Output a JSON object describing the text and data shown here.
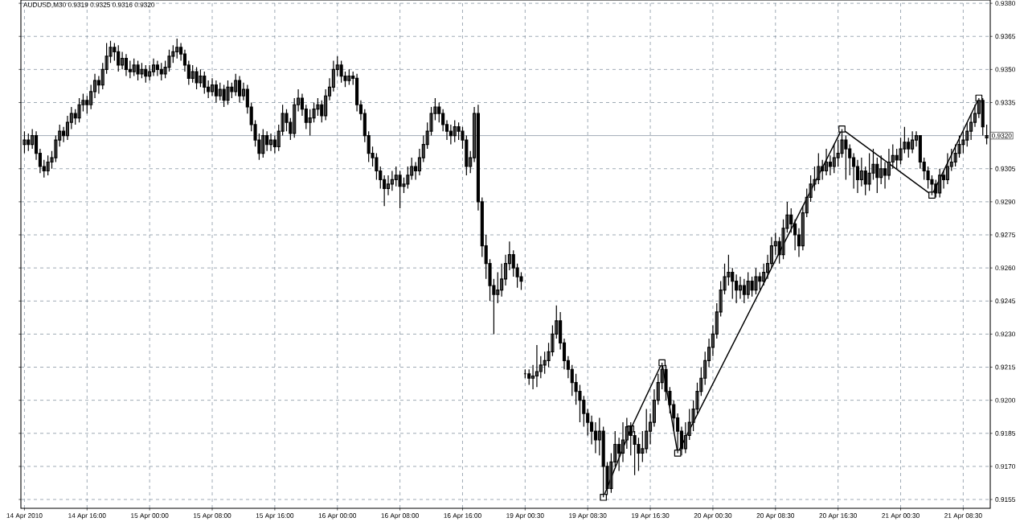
{
  "chart_data": {
    "type": "candlestick",
    "title": "AUDUSD,M30 0.9319 0.9325 0.9316 0.9320",
    "categories": [
      "14 Apr 2010",
      null,
      null,
      null,
      null,
      null,
      null,
      null,
      null,
      null,
      null,
      null,
      null,
      null,
      null,
      null,
      "14 Apr 16:00",
      null,
      null,
      null,
      null,
      null,
      null,
      null,
      null,
      null,
      null,
      null,
      null,
      null,
      null,
      null,
      "15 Apr 00:00",
      null,
      null,
      null,
      null,
      null,
      null,
      null,
      null,
      null,
      null,
      null,
      null,
      null,
      null,
      null,
      "15 Apr 08:00",
      null,
      null,
      null,
      null,
      null,
      null,
      null,
      null,
      null,
      null,
      null,
      null,
      null,
      null,
      null,
      "15 Apr 16:00",
      null,
      null,
      null,
      null,
      null,
      null,
      null,
      null,
      null,
      null,
      null,
      null,
      null,
      null,
      null,
      "16 Apr 00:00",
      null,
      null,
      null,
      null,
      null,
      null,
      null,
      null,
      null,
      null,
      null,
      null,
      null,
      null,
      null,
      "16 Apr 08:00",
      null,
      null,
      null,
      null,
      null,
      null,
      null,
      null,
      null,
      null,
      null,
      null,
      null,
      null,
      null,
      "16 Apr 16:00",
      null,
      null,
      null,
      null,
      null,
      null,
      null,
      null,
      null,
      null,
      null,
      null,
      null,
      null,
      null,
      "19 Apr 00:30",
      null,
      null,
      null,
      null,
      null,
      null,
      null,
      null,
      null,
      null,
      null,
      null,
      null,
      null,
      null,
      "19 Apr 08:30",
      null,
      null,
      null,
      null,
      null,
      null,
      null,
      null,
      null,
      null,
      null,
      null,
      null,
      null,
      null,
      "19 Apr 16:30",
      null,
      null,
      null,
      null,
      null,
      null,
      null,
      null,
      null,
      null,
      null,
      null,
      null,
      null,
      null,
      "20 Apr 00:30",
      null,
      null,
      null,
      null,
      null,
      null,
      null,
      null,
      null,
      null,
      null,
      null,
      null,
      null,
      null,
      "20 Apr 08:30",
      null,
      null,
      null,
      null,
      null,
      null,
      null,
      null,
      null,
      null,
      null,
      null,
      null,
      null,
      null,
      "20 Apr 16:30",
      null,
      null,
      null,
      null,
      null,
      null,
      null,
      null,
      null,
      null,
      null,
      null,
      null,
      null,
      null,
      "21 Apr 00:30",
      null,
      null,
      null,
      null,
      null,
      null,
      null,
      null,
      null,
      null,
      null,
      null,
      null,
      null,
      null,
      "21 Apr 08:30",
      null,
      null,
      null,
      null,
      null,
      null
    ],
    "ohlc": [
      [
        0.9316,
        0.9322,
        0.9312,
        0.9318
      ],
      [
        0.9318,
        0.9321,
        0.9313,
        0.9316
      ],
      [
        0.9316,
        0.9323,
        0.9314,
        0.932
      ],
      [
        0.932,
        0.9322,
        0.9309,
        0.9312
      ],
      [
        0.9312,
        0.9314,
        0.9303,
        0.9306
      ],
      [
        0.9306,
        0.9309,
        0.9301,
        0.9304
      ],
      [
        0.9304,
        0.9311,
        0.9302,
        0.9308
      ],
      [
        0.9308,
        0.9313,
        0.9305,
        0.931
      ],
      [
        0.931,
        0.932,
        0.9308,
        0.9318
      ],
      [
        0.9318,
        0.9325,
        0.9315,
        0.9322
      ],
      [
        0.9322,
        0.9324,
        0.9317,
        0.932
      ],
      [
        0.932,
        0.9329,
        0.9318,
        0.9326
      ],
      [
        0.9326,
        0.9333,
        0.9323,
        0.933
      ],
      [
        0.933,
        0.9332,
        0.9325,
        0.9328
      ],
      [
        0.9328,
        0.9337,
        0.9326,
        0.9334
      ],
      [
        0.9334,
        0.9339,
        0.9331,
        0.9336
      ],
      [
        0.9336,
        0.9338,
        0.933,
        0.9334
      ],
      [
        0.9334,
        0.9343,
        0.9332,
        0.934
      ],
      [
        0.934,
        0.9348,
        0.9337,
        0.9345
      ],
      [
        0.9345,
        0.9347,
        0.9339,
        0.9343
      ],
      [
        0.9343,
        0.9353,
        0.9341,
        0.935
      ],
      [
        0.935,
        0.9362,
        0.9348,
        0.9356
      ],
      [
        0.9356,
        0.9363,
        0.9353,
        0.936
      ],
      [
        0.936,
        0.9362,
        0.9354,
        0.9358
      ],
      [
        0.9358,
        0.9361,
        0.9349,
        0.9352
      ],
      [
        0.9352,
        0.9358,
        0.935,
        0.9355
      ],
      [
        0.9355,
        0.9357,
        0.9347,
        0.935
      ],
      [
        0.935,
        0.9354,
        0.9346,
        0.9349
      ],
      [
        0.9349,
        0.9355,
        0.9347,
        0.9352
      ],
      [
        0.9352,
        0.9354,
        0.9345,
        0.9348
      ],
      [
        0.9348,
        0.9353,
        0.9346,
        0.935
      ],
      [
        0.935,
        0.9352,
        0.9344,
        0.9347
      ],
      [
        0.9347,
        0.9352,
        0.9345,
        0.9349
      ],
      [
        0.9349,
        0.9355,
        0.9347,
        0.9352
      ],
      [
        0.9352,
        0.9354,
        0.9347,
        0.935
      ],
      [
        0.935,
        0.9353,
        0.9345,
        0.9348
      ],
      [
        0.9348,
        0.9354,
        0.9346,
        0.9351
      ],
      [
        0.9351,
        0.9359,
        0.9349,
        0.9356
      ],
      [
        0.9356,
        0.9361,
        0.9353,
        0.9358
      ],
      [
        0.9358,
        0.9364,
        0.9355,
        0.936
      ],
      [
        0.936,
        0.9362,
        0.9354,
        0.9357
      ],
      [
        0.9357,
        0.9359,
        0.9349,
        0.9352
      ],
      [
        0.9352,
        0.9354,
        0.9343,
        0.9346
      ],
      [
        0.9346,
        0.9352,
        0.9344,
        0.9349
      ],
      [
        0.9349,
        0.9351,
        0.9341,
        0.9344
      ],
      [
        0.9344,
        0.935,
        0.9342,
        0.9347
      ],
      [
        0.9347,
        0.9349,
        0.9339,
        0.9342
      ],
      [
        0.9342,
        0.9345,
        0.9337,
        0.934
      ],
      [
        0.934,
        0.9346,
        0.9338,
        0.9343
      ],
      [
        0.9343,
        0.9345,
        0.9335,
        0.9338
      ],
      [
        0.9338,
        0.9344,
        0.9336,
        0.9341
      ],
      [
        0.9341,
        0.9343,
        0.9333,
        0.9336
      ],
      [
        0.9336,
        0.9345,
        0.9334,
        0.9342
      ],
      [
        0.9342,
        0.9344,
        0.9337,
        0.934
      ],
      [
        0.934,
        0.9348,
        0.9338,
        0.9345
      ],
      [
        0.9345,
        0.9347,
        0.9335,
        0.9338
      ],
      [
        0.9338,
        0.9344,
        0.9336,
        0.9341
      ],
      [
        0.9341,
        0.9343,
        0.933,
        0.9333
      ],
      [
        0.9333,
        0.9335,
        0.9322,
        0.9325
      ],
      [
        0.9325,
        0.9327,
        0.9315,
        0.9318
      ],
      [
        0.9318,
        0.9321,
        0.9309,
        0.9312
      ],
      [
        0.9312,
        0.9323,
        0.931,
        0.932
      ],
      [
        0.932,
        0.9322,
        0.9313,
        0.9316
      ],
      [
        0.9316,
        0.9321,
        0.9313,
        0.9318
      ],
      [
        0.9318,
        0.932,
        0.9312,
        0.9315
      ],
      [
        0.9315,
        0.9325,
        0.9313,
        0.9322
      ],
      [
        0.9322,
        0.9334,
        0.932,
        0.933
      ],
      [
        0.933,
        0.9332,
        0.9322,
        0.9326
      ],
      [
        0.9326,
        0.9328,
        0.9318,
        0.9321
      ],
      [
        0.9321,
        0.9337,
        0.9319,
        0.9334
      ],
      [
        0.9334,
        0.9341,
        0.9331,
        0.9337
      ],
      [
        0.9337,
        0.9339,
        0.9329,
        0.9332
      ],
      [
        0.9332,
        0.9334,
        0.9323,
        0.9326
      ],
      [
        0.9326,
        0.9332,
        0.932,
        0.9328
      ],
      [
        0.9328,
        0.9335,
        0.9326,
        0.9332
      ],
      [
        0.9332,
        0.9337,
        0.9329,
        0.9334
      ],
      [
        0.9334,
        0.9336,
        0.9326,
        0.9329
      ],
      [
        0.9329,
        0.9341,
        0.9327,
        0.9338
      ],
      [
        0.9338,
        0.9346,
        0.9336,
        0.9342
      ],
      [
        0.9342,
        0.9354,
        0.934,
        0.935
      ],
      [
        0.935,
        0.9356,
        0.9347,
        0.9352
      ],
      [
        0.9352,
        0.9354,
        0.9344,
        0.9347
      ],
      [
        0.9347,
        0.9349,
        0.9342,
        0.9345
      ],
      [
        0.9345,
        0.935,
        0.9343,
        0.9347
      ],
      [
        0.9347,
        0.9349,
        0.9343,
        0.9346
      ],
      [
        0.9346,
        0.9348,
        0.9331,
        0.9334
      ],
      [
        0.9334,
        0.9336,
        0.9327,
        0.933
      ],
      [
        0.933,
        0.9332,
        0.9317,
        0.932
      ],
      [
        0.932,
        0.9322,
        0.9308,
        0.9312
      ],
      [
        0.9312,
        0.9315,
        0.9306,
        0.931
      ],
      [
        0.931,
        0.9312,
        0.93,
        0.9304
      ],
      [
        0.9304,
        0.9306,
        0.9296,
        0.93
      ],
      [
        0.93,
        0.9302,
        0.9288,
        0.9296
      ],
      [
        0.9296,
        0.9302,
        0.9293,
        0.9298
      ],
      [
        0.9298,
        0.9304,
        0.9295,
        0.93
      ],
      [
        0.93,
        0.9306,
        0.9297,
        0.9302
      ],
      [
        0.9302,
        0.9304,
        0.9287,
        0.9297
      ],
      [
        0.9297,
        0.9301,
        0.9294,
        0.9298
      ],
      [
        0.9298,
        0.9306,
        0.9296,
        0.9302
      ],
      [
        0.9302,
        0.931,
        0.93,
        0.9306
      ],
      [
        0.9306,
        0.9308,
        0.93,
        0.9304
      ],
      [
        0.9304,
        0.9314,
        0.9302,
        0.931
      ],
      [
        0.931,
        0.932,
        0.9308,
        0.9316
      ],
      [
        0.9316,
        0.9326,
        0.9314,
        0.9322
      ],
      [
        0.9322,
        0.9333,
        0.932,
        0.933
      ],
      [
        0.933,
        0.9337,
        0.9327,
        0.9333
      ],
      [
        0.9333,
        0.9335,
        0.9326,
        0.933
      ],
      [
        0.933,
        0.9332,
        0.9322,
        0.9325
      ],
      [
        0.9325,
        0.9327,
        0.9318,
        0.9322
      ],
      [
        0.9322,
        0.9325,
        0.9316,
        0.932
      ],
      [
        0.932,
        0.9327,
        0.9317,
        0.9324
      ],
      [
        0.9324,
        0.9326,
        0.9318,
        0.9322
      ],
      [
        0.9322,
        0.9324,
        0.9314,
        0.9318
      ],
      [
        0.9318,
        0.932,
        0.9302,
        0.9306
      ],
      [
        0.9306,
        0.9313,
        0.9303,
        0.931
      ],
      [
        0.931,
        0.9333,
        0.9308,
        0.933
      ],
      [
        0.933,
        0.9334,
        0.9286,
        0.929
      ],
      [
        0.929,
        0.9292,
        0.9265,
        0.927
      ],
      [
        0.927,
        0.9275,
        0.9255,
        0.9262
      ],
      [
        0.9262,
        0.9264,
        0.9245,
        0.9252
      ],
      [
        0.9252,
        0.9255,
        0.923,
        0.9248
      ],
      [
        0.9248,
        0.9258,
        0.9244,
        0.925
      ],
      [
        0.925,
        0.9262,
        0.9247,
        0.9255
      ],
      [
        0.9255,
        0.9266,
        0.9252,
        0.9262
      ],
      [
        0.9262,
        0.9272,
        0.9259,
        0.9266
      ],
      [
        0.9266,
        0.9268,
        0.9256,
        0.926
      ],
      [
        0.926,
        0.9262,
        0.9251,
        0.9256
      ],
      [
        0.9256,
        0.9258,
        0.925,
        0.9254
      ],
      [
        0.9212,
        0.9214,
        0.921,
        0.9212
      ],
      [
        0.9212,
        0.9214,
        0.9207,
        0.921
      ],
      [
        0.921,
        0.9216,
        0.9205,
        0.9211
      ],
      [
        0.9211,
        0.9225,
        0.9206,
        0.9213
      ],
      [
        0.9213,
        0.922,
        0.921,
        0.9216
      ],
      [
        0.9216,
        0.9222,
        0.9212,
        0.9218
      ],
      [
        0.9218,
        0.9226,
        0.9215,
        0.9222
      ],
      [
        0.9222,
        0.9234,
        0.922,
        0.923
      ],
      [
        0.923,
        0.9243,
        0.9228,
        0.9236
      ],
      [
        0.9236,
        0.924,
        0.9223,
        0.9226
      ],
      [
        0.9226,
        0.9228,
        0.9214,
        0.9218
      ],
      [
        0.9218,
        0.922,
        0.921,
        0.9214
      ],
      [
        0.9214,
        0.9216,
        0.9202,
        0.9208
      ],
      [
        0.9208,
        0.9212,
        0.9198,
        0.9204
      ],
      [
        0.9204,
        0.9207,
        0.919,
        0.92
      ],
      [
        0.92,
        0.9202,
        0.9188,
        0.9194
      ],
      [
        0.9194,
        0.9196,
        0.9184,
        0.919
      ],
      [
        0.919,
        0.9193,
        0.918,
        0.9186
      ],
      [
        0.9186,
        0.919,
        0.9176,
        0.9182
      ],
      [
        0.9182,
        0.9192,
        0.9175,
        0.9186
      ],
      [
        0.9186,
        0.9188,
        0.9156,
        0.917
      ],
      [
        0.917,
        0.9172,
        0.9157,
        0.916
      ],
      [
        0.916,
        0.9176,
        0.9158,
        0.9172
      ],
      [
        0.9172,
        0.9186,
        0.917,
        0.918
      ],
      [
        0.918,
        0.9183,
        0.9168,
        0.9176
      ],
      [
        0.9176,
        0.919,
        0.9172,
        0.9182
      ],
      [
        0.9182,
        0.9192,
        0.9178,
        0.9188
      ],
      [
        0.9188,
        0.919,
        0.9175,
        0.9184
      ],
      [
        0.9184,
        0.9186,
        0.9166,
        0.918
      ],
      [
        0.918,
        0.9183,
        0.9168,
        0.9176
      ],
      [
        0.9176,
        0.9186,
        0.9172,
        0.9178
      ],
      [
        0.9178,
        0.9196,
        0.9176,
        0.9186
      ],
      [
        0.9186,
        0.9194,
        0.918,
        0.919
      ],
      [
        0.919,
        0.9205,
        0.9188,
        0.92
      ],
      [
        0.92,
        0.9212,
        0.9198,
        0.9208
      ],
      [
        0.9208,
        0.9217,
        0.9205,
        0.9214
      ],
      [
        0.9214,
        0.9216,
        0.92,
        0.9204
      ],
      [
        0.9204,
        0.9206,
        0.9194,
        0.9198
      ],
      [
        0.9198,
        0.92,
        0.9186,
        0.9192
      ],
      [
        0.9192,
        0.9194,
        0.9176,
        0.9186
      ],
      [
        0.9186,
        0.9188,
        0.9175,
        0.9178
      ],
      [
        0.9178,
        0.919,
        0.9176,
        0.9184
      ],
      [
        0.9184,
        0.9196,
        0.9182,
        0.919
      ],
      [
        0.919,
        0.92,
        0.9186,
        0.9196
      ],
      [
        0.9196,
        0.9208,
        0.9194,
        0.9204
      ],
      [
        0.9204,
        0.9215,
        0.9202,
        0.921
      ],
      [
        0.921,
        0.9222,
        0.9207,
        0.9218
      ],
      [
        0.9218,
        0.9228,
        0.9215,
        0.9224
      ],
      [
        0.9224,
        0.9234,
        0.922,
        0.923
      ],
      [
        0.923,
        0.9244,
        0.9228,
        0.924
      ],
      [
        0.924,
        0.9254,
        0.9238,
        0.925
      ],
      [
        0.925,
        0.9262,
        0.9248,
        0.9256
      ],
      [
        0.9256,
        0.9266,
        0.9252,
        0.9258
      ],
      [
        0.9258,
        0.926,
        0.9246,
        0.9254
      ],
      [
        0.9254,
        0.9257,
        0.9244,
        0.925
      ],
      [
        0.925,
        0.9256,
        0.9246,
        0.9252
      ],
      [
        0.9252,
        0.9255,
        0.9244,
        0.9248
      ],
      [
        0.9248,
        0.9258,
        0.9246,
        0.9254
      ],
      [
        0.9254,
        0.9256,
        0.9247,
        0.925
      ],
      [
        0.925,
        0.926,
        0.9248,
        0.9256
      ],
      [
        0.9256,
        0.9258,
        0.925,
        0.9254
      ],
      [
        0.9254,
        0.9262,
        0.9252,
        0.9258
      ],
      [
        0.9258,
        0.9266,
        0.9255,
        0.9262
      ],
      [
        0.9262,
        0.9274,
        0.926,
        0.927
      ],
      [
        0.927,
        0.9276,
        0.9266,
        0.9272
      ],
      [
        0.9272,
        0.9274,
        0.9262,
        0.9266
      ],
      [
        0.9266,
        0.9282,
        0.9264,
        0.9278
      ],
      [
        0.9278,
        0.929,
        0.9276,
        0.9284
      ],
      [
        0.9284,
        0.9287,
        0.9276,
        0.928
      ],
      [
        0.928,
        0.9282,
        0.9268,
        0.9275
      ],
      [
        0.9275,
        0.9278,
        0.9265,
        0.927
      ],
      [
        0.927,
        0.9288,
        0.9268,
        0.9285
      ],
      [
        0.9285,
        0.9296,
        0.9283,
        0.9292
      ],
      [
        0.9292,
        0.9302,
        0.929,
        0.9298
      ],
      [
        0.9298,
        0.9306,
        0.9295,
        0.93
      ],
      [
        0.93,
        0.9312,
        0.9298,
        0.9306
      ],
      [
        0.9306,
        0.9309,
        0.93,
        0.9304
      ],
      [
        0.9304,
        0.9314,
        0.9302,
        0.9308
      ],
      [
        0.9308,
        0.9311,
        0.9302,
        0.9306
      ],
      [
        0.9306,
        0.9316,
        0.9303,
        0.931
      ],
      [
        0.931,
        0.9318,
        0.9306,
        0.9312
      ],
      [
        0.9312,
        0.9323,
        0.931,
        0.9318
      ],
      [
        0.9318,
        0.932,
        0.93,
        0.9314
      ],
      [
        0.9314,
        0.9316,
        0.9302,
        0.931
      ],
      [
        0.931,
        0.9312,
        0.9296,
        0.9306
      ],
      [
        0.9306,
        0.9309,
        0.9294,
        0.93
      ],
      [
        0.93,
        0.931,
        0.9297,
        0.9304
      ],
      [
        0.9304,
        0.9306,
        0.9293,
        0.9298
      ],
      [
        0.9298,
        0.9312,
        0.9295,
        0.9303
      ],
      [
        0.9303,
        0.9314,
        0.93,
        0.9307
      ],
      [
        0.9307,
        0.931,
        0.9294,
        0.9301
      ],
      [
        0.9301,
        0.9311,
        0.9298,
        0.9305
      ],
      [
        0.9305,
        0.9308,
        0.9296,
        0.9302
      ],
      [
        0.9302,
        0.9314,
        0.93,
        0.9308
      ],
      [
        0.9308,
        0.9316,
        0.9305,
        0.9311
      ],
      [
        0.9311,
        0.9314,
        0.9305,
        0.9309
      ],
      [
        0.9309,
        0.9319,
        0.9307,
        0.9314
      ],
      [
        0.9314,
        0.9324,
        0.9312,
        0.9317
      ],
      [
        0.9317,
        0.9319,
        0.931,
        0.9314
      ],
      [
        0.9314,
        0.9322,
        0.9312,
        0.9318
      ],
      [
        0.9318,
        0.9322,
        0.9315,
        0.932
      ],
      [
        0.932,
        0.932,
        0.9305,
        0.9308
      ],
      [
        0.9308,
        0.931,
        0.93,
        0.9304
      ],
      [
        0.9304,
        0.9306,
        0.9296,
        0.93
      ],
      [
        0.93,
        0.9302,
        0.9293,
        0.9298
      ],
      [
        0.9298,
        0.93,
        0.9292,
        0.9294
      ],
      [
        0.9294,
        0.9305,
        0.9292,
        0.9302
      ],
      [
        0.9302,
        0.9304,
        0.9296,
        0.93
      ],
      [
        0.93,
        0.9312,
        0.9298,
        0.9306
      ],
      [
        0.9306,
        0.9314,
        0.9304,
        0.9308
      ],
      [
        0.9308,
        0.9316,
        0.9306,
        0.9312
      ],
      [
        0.9312,
        0.932,
        0.931,
        0.9316
      ],
      [
        0.9316,
        0.9322,
        0.9312,
        0.9318
      ],
      [
        0.9318,
        0.9326,
        0.9315,
        0.9322
      ],
      [
        0.9322,
        0.933,
        0.9318,
        0.9326
      ],
      [
        0.9326,
        0.9334,
        0.9324,
        0.933
      ],
      [
        0.933,
        0.9337,
        0.9328,
        0.9336
      ],
      [
        0.9336,
        0.9337,
        0.932,
        0.9324
      ],
      [
        0.9319,
        0.9325,
        0.9316,
        0.932
      ]
    ],
    "series": [
      {
        "type": "line",
        "color": "#000000",
        "marker": "square",
        "values": [
          null,
          null,
          null,
          null,
          null,
          null,
          null,
          null,
          null,
          null,
          null,
          null,
          null,
          null,
          null,
          null,
          null,
          null,
          null,
          null,
          null,
          null,
          null,
          null,
          null,
          null,
          null,
          null,
          null,
          null,
          null,
          null,
          null,
          null,
          null,
          null,
          null,
          null,
          null,
          null,
          null,
          null,
          null,
          null,
          null,
          null,
          null,
          null,
          null,
          null,
          null,
          null,
          null,
          null,
          null,
          null,
          null,
          null,
          null,
          null,
          null,
          null,
          null,
          null,
          null,
          null,
          null,
          null,
          null,
          null,
          null,
          null,
          null,
          null,
          null,
          null,
          null,
          null,
          null,
          null,
          null,
          null,
          null,
          null,
          null,
          null,
          null,
          null,
          null,
          null,
          null,
          null,
          null,
          null,
          null,
          null,
          null,
          null,
          null,
          null,
          null,
          null,
          null,
          null,
          null,
          null,
          null,
          null,
          null,
          null,
          null,
          null,
          null,
          null,
          null,
          null,
          null,
          null,
          null,
          null,
          null,
          null,
          null,
          null,
          null,
          null,
          null,
          null,
          null,
          null,
          null,
          null,
          null,
          null,
          null,
          null,
          null,
          null,
          null,
          null,
          null,
          null,
          null,
          null,
          null,
          null,
          null,
          null,
          0.9156,
          null,
          null,
          null,
          null,
          null,
          null,
          0.9187,
          null,
          null,
          null,
          null,
          null,
          null,
          null,
          0.9217,
          null,
          null,
          null,
          0.9176,
          null,
          null,
          null,
          null,
          null,
          null,
          null,
          null,
          null,
          null,
          null,
          null,
          null,
          null,
          null,
          null,
          null,
          null,
          null,
          null,
          null,
          null,
          null,
          null,
          null,
          null,
          null,
          null,
          null,
          null,
          null,
          null,
          null,
          null,
          null,
          null,
          null,
          null,
          null,
          null,
          null,
          0.9323,
          null,
          null,
          null,
          null,
          null,
          null,
          null,
          null,
          null,
          null,
          null,
          null,
          null,
          null,
          null,
          null,
          null,
          null,
          null,
          null,
          null,
          null,
          0.9293,
          null,
          null,
          null,
          null,
          null,
          null,
          null,
          null,
          null,
          null,
          null,
          0.9337,
          null,
          null
        ]
      }
    ],
    "ylim": [
      0.9151,
      0.93815
    ],
    "yticks": [
      {
        "value": 0.9155,
        "label": "0.9155"
      },
      {
        "value": 0.917,
        "label": "0.9170"
      },
      {
        "value": 0.9185,
        "label": "0.9185"
      },
      {
        "value": 0.92,
        "label": "0.9200"
      },
      {
        "value": 0.9215,
        "label": "0.9215"
      },
      {
        "value": 0.923,
        "label": "0.9230"
      },
      {
        "value": 0.9245,
        "label": "0.9245"
      },
      {
        "value": 0.926,
        "label": "0.9260"
      },
      {
        "value": 0.9275,
        "label": "0.9275"
      },
      {
        "value": 0.929,
        "label": "0.9290"
      },
      {
        "value": 0.9305,
        "label": "0.9305"
      },
      {
        "value": 0.9335,
        "label": "0.9335"
      },
      {
        "value": 0.935,
        "label": "0.9350"
      },
      {
        "value": 0.9365,
        "label": "0.9365"
      },
      {
        "value": 0.938,
        "label": "0.9380"
      }
    ],
    "ref_lines": [
      {
        "axis": "y",
        "value": 0.932,
        "label": "0.9320",
        "color": "#8a96a3"
      }
    ],
    "grid": true
  }
}
